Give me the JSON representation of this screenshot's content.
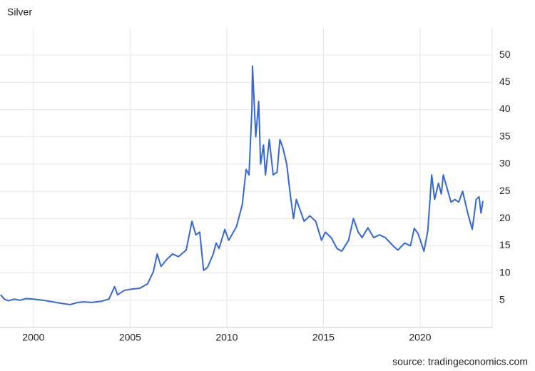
{
  "chart_data": {
    "type": "line",
    "title": "Silver",
    "source": "source: tradingeconomics.com",
    "grid": true,
    "xlim": [
      1998.27,
      2023.73
    ],
    "xticks": [
      2000,
      2005,
      2010,
      2015,
      2020
    ],
    "ylim": [
      0,
      55
    ],
    "yticks": [
      5,
      10,
      15,
      20,
      25,
      30,
      35,
      40,
      45,
      50
    ],
    "series": [
      {
        "name": "Silver",
        "color": "#3567d6",
        "x": [
          1998.3,
          1998.5,
          1998.7,
          1999.0,
          1999.3,
          1999.6,
          2000.0,
          2000.5,
          2001.0,
          2001.5,
          2001.9,
          2002.3,
          2002.6,
          2003.0,
          2003.5,
          2003.9,
          2004.2,
          2004.35,
          2004.7,
          2005.0,
          2005.5,
          2005.9,
          2006.2,
          2006.4,
          2006.6,
          2006.9,
          2007.2,
          2007.5,
          2007.9,
          2008.2,
          2008.4,
          2008.6,
          2008.8,
          2009.0,
          2009.3,
          2009.45,
          2009.6,
          2009.9,
          2010.1,
          2010.5,
          2010.8,
          2011.0,
          2011.15,
          2011.3,
          2011.33,
          2011.5,
          2011.65,
          2011.75,
          2011.9,
          2012.0,
          2012.2,
          2012.4,
          2012.6,
          2012.75,
          2012.9,
          2013.1,
          2013.3,
          2013.45,
          2013.6,
          2013.8,
          2014.0,
          2014.3,
          2014.6,
          2014.9,
          2015.1,
          2015.4,
          2015.7,
          2015.95,
          2016.3,
          2016.55,
          2016.8,
          2017.0,
          2017.3,
          2017.6,
          2017.9,
          2018.2,
          2018.6,
          2018.85,
          2019.2,
          2019.5,
          2019.7,
          2019.9,
          2020.2,
          2020.4,
          2020.6,
          2020.75,
          2020.95,
          2021.1,
          2021.2,
          2021.4,
          2021.6,
          2021.8,
          2022.0,
          2022.2,
          2022.5,
          2022.7,
          2022.9,
          2023.05,
          2023.15,
          2023.25
        ],
        "values": [
          6.0,
          5.2,
          4.9,
          5.2,
          5.0,
          5.3,
          5.2,
          5.0,
          4.7,
          4.4,
          4.2,
          4.6,
          4.7,
          4.6,
          4.8,
          5.2,
          7.5,
          6.0,
          6.8,
          7.0,
          7.2,
          8.0,
          10.2,
          13.5,
          11.2,
          12.5,
          13.5,
          13.0,
          14.2,
          19.5,
          17.0,
          17.5,
          10.5,
          11.0,
          13.5,
          15.5,
          14.5,
          18.0,
          16.0,
          18.5,
          22.5,
          29.0,
          28.0,
          40.0,
          48.0,
          35.0,
          41.5,
          30.0,
          33.5,
          28.0,
          34.5,
          28.0,
          28.5,
          34.5,
          33.0,
          30.0,
          24.0,
          20.0,
          23.5,
          21.5,
          19.5,
          20.5,
          19.5,
          16.0,
          17.5,
          16.5,
          14.5,
          14.0,
          16.0,
          20.0,
          17.5,
          16.5,
          18.3,
          16.5,
          17.0,
          16.5,
          15.0,
          14.2,
          15.5,
          15.0,
          18.2,
          17.2,
          14.0,
          17.8,
          28.0,
          23.5,
          26.5,
          24.5,
          28.0,
          25.5,
          23.0,
          23.5,
          23.0,
          25.0,
          20.5,
          18.0,
          23.5,
          24.0,
          21.0,
          23.2
        ]
      }
    ]
  }
}
